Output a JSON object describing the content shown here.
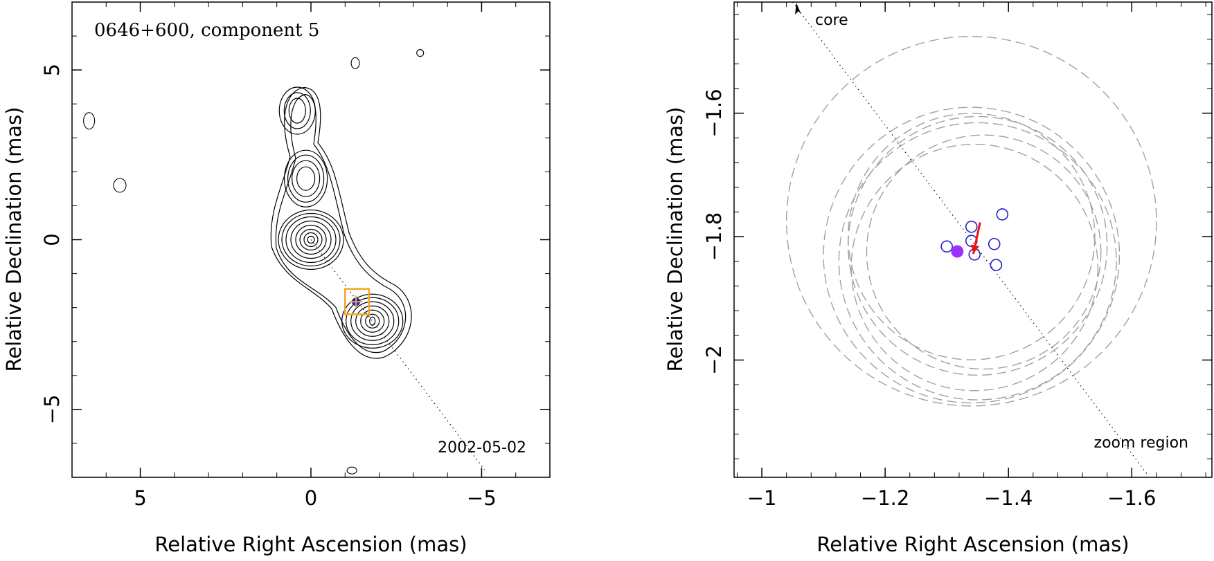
{
  "chart_data": [
    {
      "type": "contour",
      "title": "0646+600, component 5",
      "date": "2002-05-02",
      "xlabel": "Relative Right Ascension (mas)",
      "ylabel": "Relative Declination (mas)",
      "xlim": [
        7,
        -7
      ],
      "ylim": [
        -7,
        7
      ],
      "xticks": [
        5,
        0,
        -5
      ],
      "yticks": [
        5,
        0,
        -5
      ],
      "xtick_labels": [
        "5",
        "0",
        "−5"
      ],
      "ytick_labels": [
        "5",
        "0",
        "−5"
      ],
      "core": [
        0,
        0
      ],
      "knots": [
        {
          "x": 0.15,
          "y": 1.8
        },
        {
          "x": 0.4,
          "y": 3.8
        },
        {
          "x": -1.8,
          "y": -2.4
        }
      ],
      "component_position": [
        -1.32,
        -1.83
      ],
      "zoom_box": {
        "x": [
          -1.0,
          -1.7
        ],
        "y": [
          -1.45,
          -2.2
        ]
      },
      "jet_line": [
        [
          0,
          0
        ],
        [
          -5.1,
          -6.8
        ]
      ],
      "colors": {
        "contour": "#000000",
        "zoom_box": "#f5a623",
        "marker": "#1f1fcf"
      }
    },
    {
      "type": "scatter",
      "xlabel": "Relative Right Ascension (mas)",
      "ylabel": "Relative Declination (mas)",
      "xlim": [
        -0.955,
        -1.73
      ],
      "ylim": [
        -2.19,
        -1.42
      ],
      "xticks": [
        -1,
        -1.2,
        -1.4,
        -1.6
      ],
      "yticks": [
        -1.6,
        -1.8,
        -2
      ],
      "xtick_labels": [
        "−1",
        "−1.2",
        "−1.4",
        "−1.6"
      ],
      "ytick_labels": [
        "−1.6",
        "−1.8",
        "−2"
      ],
      "core_label": "core",
      "zoom_label": "zoom region",
      "open_points": [
        {
          "x": -1.3,
          "y": -1.816
        },
        {
          "x": -1.34,
          "y": -1.784
        },
        {
          "x": -1.34,
          "y": -1.807
        },
        {
          "x": -1.345,
          "y": -1.829
        },
        {
          "x": -1.377,
          "y": -1.812
        },
        {
          "x": -1.38,
          "y": -1.846
        },
        {
          "x": -1.39,
          "y": -1.764
        }
      ],
      "filled_point": {
        "x": -1.317,
        "y": -1.824
      },
      "arrow": {
        "from": [
          -1.354,
          -1.777
        ],
        "to": [
          -1.343,
          -1.828
        ]
      },
      "error_circles": [
        {
          "x": -1.34,
          "y": -1.775,
          "r": 0.3
        },
        {
          "x": -1.35,
          "y": -1.84,
          "r": 0.225
        },
        {
          "x": -1.34,
          "y": -1.83,
          "r": 0.24
        },
        {
          "x": -1.35,
          "y": -1.815,
          "r": 0.21
        },
        {
          "x": -1.34,
          "y": -1.8,
          "r": 0.2
        },
        {
          "x": -1.345,
          "y": -1.85,
          "r": 0.2
        },
        {
          "x": -1.36,
          "y": -1.825,
          "r": 0.19
        }
      ],
      "direction_line": [
        [
          -1.05,
          -1.42
        ],
        [
          -1.625,
          -2.185
        ]
      ],
      "colors": {
        "open": "#1f1fcf",
        "filled": "#9b30ff",
        "arrow": "#ee1111",
        "circles": "#a0a0a0"
      }
    }
  ]
}
